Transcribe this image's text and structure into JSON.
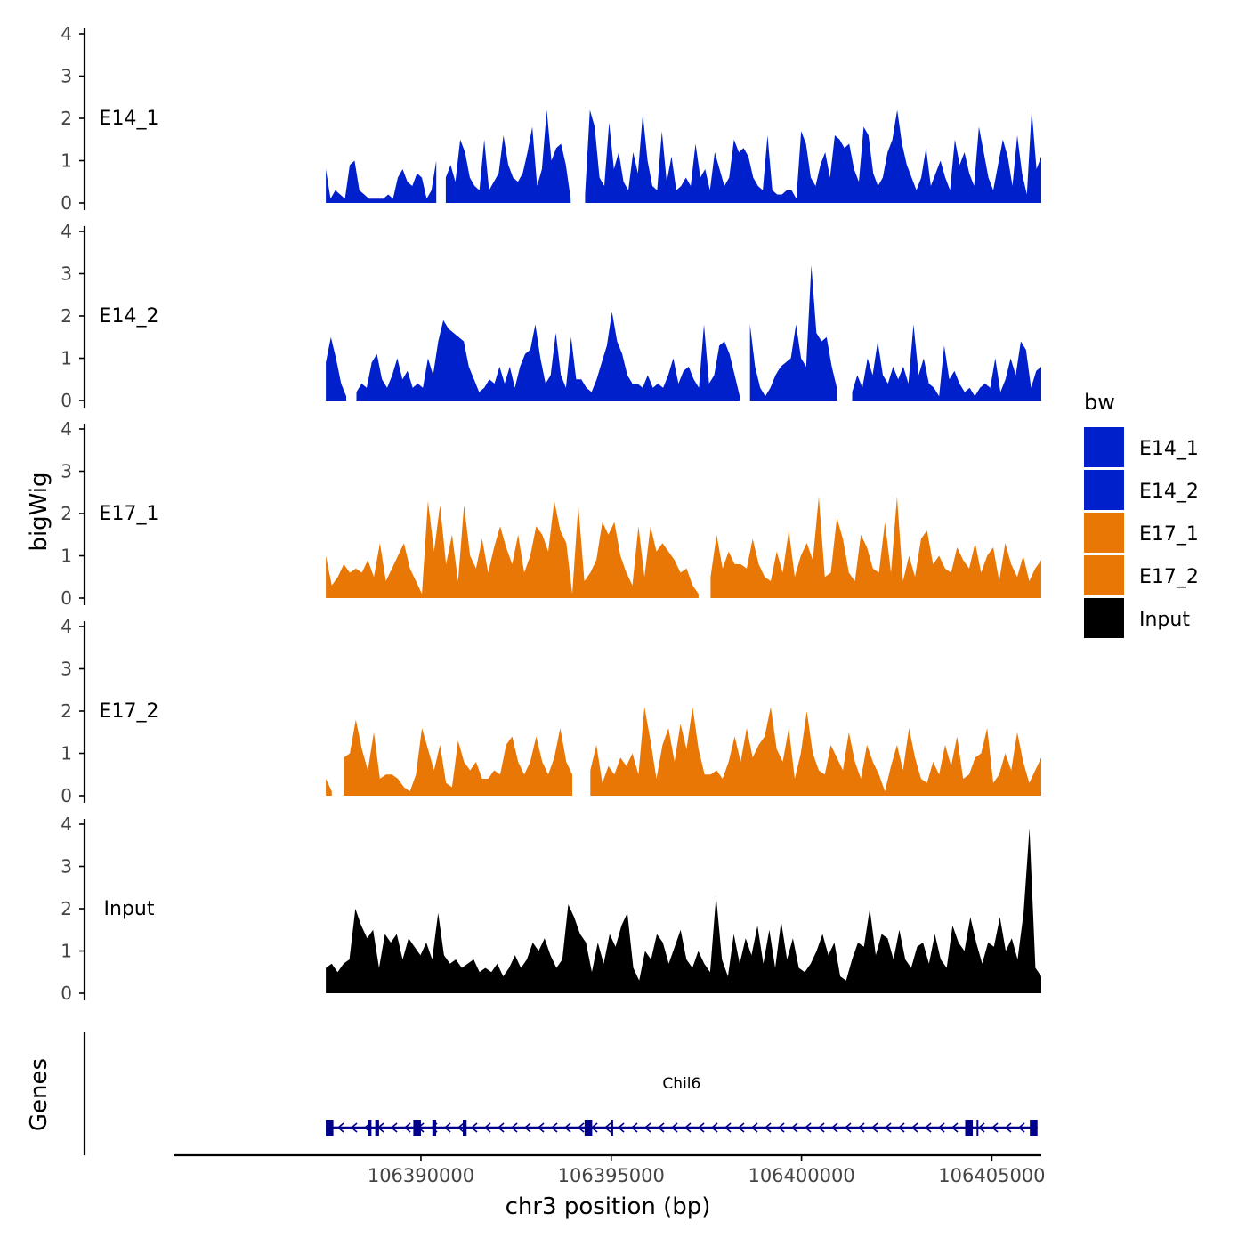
{
  "chart_data": {
    "type": "area",
    "title": "",
    "chromosome": "chr3",
    "xlabel": "chr3 position (bp)",
    "ylabel": "bigWig",
    "genes_label": "Genes",
    "xlim": [
      106383500,
      106406300
    ],
    "x_range": [
      106387500,
      106406300
    ],
    "x_ticks": [
      106390000,
      106395000,
      106400000,
      106405000
    ],
    "x_tick_labels": [
      "106390000",
      "106395000",
      "106400000",
      "106405000"
    ],
    "ylim": [
      0,
      4
    ],
    "y_ticks": [
      0,
      1,
      2,
      3,
      4
    ],
    "y_tick_labels": [
      "0",
      "1",
      "2",
      "3",
      "4"
    ],
    "legend": {
      "title": "bw",
      "position": "right",
      "items": [
        {
          "label": "E14_1",
          "color": "#0020CC"
        },
        {
          "label": "E14_2",
          "color": "#0020CC"
        },
        {
          "label": "E17_1",
          "color": "#E87706"
        },
        {
          "label": "E17_2",
          "color": "#E87706"
        },
        {
          "label": "Input",
          "color": "#000000"
        }
      ]
    },
    "series": [
      {
        "name": "E14_1",
        "color": "#0020CC",
        "values": [
          0.8,
          0.1,
          0.3,
          0.2,
          0.1,
          0.9,
          1.0,
          0.3,
          0.2,
          0.1,
          0.1,
          0.1,
          0.1,
          0.2,
          0.1,
          0.6,
          0.8,
          0.5,
          0.4,
          0.7,
          0.6,
          0.1,
          0.3,
          1.0,
          null,
          0.6,
          0.9,
          0.5,
          1.5,
          1.2,
          0.6,
          0.4,
          0.3,
          1.5,
          0.3,
          0.5,
          0.7,
          1.6,
          0.9,
          0.6,
          0.5,
          0.7,
          1.2,
          1.8,
          0.4,
          0.8,
          2.2,
          1.0,
          1.3,
          1.4,
          0.9,
          0.1,
          null,
          null,
          0.2,
          2.2,
          1.8,
          0.6,
          0.4,
          1.9,
          0.8,
          1.2,
          0.5,
          0.3,
          1.2,
          0.7,
          2.1,
          1.0,
          0.4,
          0.3,
          1.7,
          0.5,
          1.1,
          0.3,
          0.4,
          0.6,
          0.4,
          1.4,
          0.6,
          0.8,
          0.3,
          1.2,
          0.8,
          0.4,
          0.6,
          1.5,
          1.2,
          1.3,
          1.1,
          0.6,
          0.4,
          0.3,
          1.6,
          0.3,
          0.2,
          0.2,
          0.3,
          0.3,
          0.1,
          1.7,
          1.4,
          0.6,
          0.4,
          0.9,
          1.2,
          0.6,
          1.6,
          1.5,
          1.3,
          1.4,
          0.8,
          0.5,
          1.8,
          1.6,
          0.7,
          0.4,
          0.6,
          1.2,
          1.5,
          2.2,
          1.4,
          0.9,
          0.6,
          0.3,
          0.6,
          1.3,
          0.4,
          0.7,
          1.0,
          0.6,
          0.3,
          1.5,
          0.9,
          1.2,
          0.7,
          0.4,
          1.8,
          1.2,
          0.6,
          0.3,
          0.9,
          1.5,
          1.1,
          0.4,
          1.6,
          0.7,
          0.2,
          2.2,
          0.8,
          1.1
        ]
      },
      {
        "name": "E14_2",
        "color": "#0020CC",
        "values": [
          0.9,
          1.5,
          1.0,
          0.4,
          0.1,
          null,
          0.2,
          0.4,
          0.3,
          0.9,
          1.1,
          0.5,
          0.3,
          0.6,
          1.0,
          0.5,
          0.7,
          0.3,
          0.4,
          0.3,
          1.0,
          0.6,
          1.4,
          1.9,
          1.7,
          1.6,
          1.5,
          1.4,
          0.8,
          0.5,
          0.2,
          0.3,
          0.5,
          0.4,
          0.8,
          0.4,
          0.8,
          0.3,
          0.8,
          1.1,
          1.2,
          1.8,
          1.0,
          0.4,
          0.6,
          1.6,
          0.6,
          0.3,
          1.5,
          0.5,
          0.5,
          0.3,
          0.2,
          0.5,
          0.9,
          1.3,
          2.1,
          1.4,
          1.1,
          0.6,
          0.4,
          0.4,
          0.3,
          0.6,
          0.3,
          0.4,
          0.3,
          0.6,
          1.0,
          0.4,
          0.7,
          0.8,
          0.5,
          0.3,
          1.8,
          0.4,
          0.6,
          1.3,
          1.4,
          1.1,
          0.6,
          0.1,
          null,
          1.8,
          0.8,
          0.3,
          0.1,
          0.3,
          0.6,
          0.8,
          0.9,
          1.0,
          1.8,
          1.0,
          0.8,
          3.2,
          1.6,
          1.4,
          1.5,
          0.8,
          0.3,
          null,
          null,
          0.2,
          0.6,
          0.3,
          1.0,
          0.6,
          1.4,
          0.6,
          0.4,
          0.8,
          0.5,
          0.8,
          0.4,
          1.8,
          0.6,
          1.0,
          0.4,
          0.3,
          0.1,
          1.3,
          0.5,
          0.7,
          0.4,
          0.2,
          0.3,
          0.1,
          0.3,
          0.4,
          0.3,
          1.0,
          0.2,
          0.5,
          1.0,
          0.6,
          1.4,
          1.2,
          0.3,
          0.7,
          0.8
        ]
      },
      {
        "name": "E17_1",
        "color": "#E87706",
        "values": [
          1.0,
          0.3,
          0.5,
          0.8,
          0.6,
          0.7,
          0.6,
          0.9,
          0.5,
          1.3,
          0.4,
          0.7,
          1.0,
          1.3,
          0.7,
          0.4,
          0.1,
          2.3,
          1.1,
          2.2,
          0.8,
          1.5,
          0.4,
          2.2,
          1.0,
          0.7,
          1.4,
          0.6,
          1.2,
          1.7,
          1.2,
          0.8,
          1.5,
          0.6,
          1.0,
          1.7,
          1.5,
          1.1,
          2.3,
          1.6,
          1.3,
          0.1,
          2.2,
          0.4,
          0.6,
          0.9,
          1.8,
          1.5,
          1.8,
          1.0,
          0.6,
          0.3,
          1.7,
          0.5,
          1.7,
          1.1,
          1.3,
          1.1,
          0.9,
          0.6,
          0.7,
          0.3,
          0.1,
          null,
          0.5,
          1.5,
          0.7,
          1.1,
          0.8,
          0.8,
          0.7,
          1.4,
          0.8,
          0.5,
          0.4,
          1.1,
          0.6,
          1.6,
          0.5,
          1.0,
          1.3,
          0.9,
          2.4,
          0.5,
          0.6,
          1.9,
          1.4,
          0.6,
          0.4,
          1.5,
          1.2,
          0.7,
          0.6,
          1.8,
          0.6,
          2.4,
          0.4,
          1.0,
          0.5,
          1.4,
          1.6,
          0.8,
          1.0,
          0.7,
          0.6,
          1.2,
          0.9,
          0.7,
          1.3,
          0.6,
          1.0,
          1.2,
          0.4,
          1.3,
          0.8,
          0.5,
          1.0,
          0.4,
          0.7,
          0.9
        ]
      },
      {
        "name": "E17_2",
        "color": "#E87706",
        "values": [
          0.4,
          0.1,
          null,
          0.9,
          1.0,
          1.8,
          1.1,
          0.6,
          1.5,
          0.4,
          0.5,
          0.5,
          0.4,
          0.2,
          0.1,
          0.5,
          1.6,
          1.1,
          0.6,
          1.2,
          0.3,
          0.2,
          1.3,
          0.8,
          0.6,
          0.8,
          0.4,
          0.4,
          0.6,
          0.5,
          1.2,
          1.4,
          0.8,
          0.5,
          0.8,
          1.4,
          0.8,
          0.5,
          0.9,
          1.6,
          0.8,
          0.5,
          null,
          null,
          0.6,
          1.2,
          0.3,
          0.7,
          0.5,
          0.9,
          0.7,
          1.0,
          0.5,
          2.1,
          1.3,
          0.4,
          1.2,
          1.6,
          0.8,
          1.7,
          1.1,
          2.1,
          1.1,
          0.5,
          0.5,
          0.6,
          0.4,
          0.8,
          1.4,
          0.8,
          1.6,
          0.9,
          1.2,
          1.4,
          2.1,
          1.1,
          0.8,
          1.6,
          0.4,
          1.0,
          2.0,
          1.0,
          0.6,
          0.5,
          1.2,
          0.9,
          0.6,
          1.5,
          0.8,
          0.4,
          1.2,
          0.8,
          0.5,
          0.1,
          0.7,
          1.2,
          0.6,
          1.6,
          0.9,
          0.4,
          0.3,
          0.8,
          0.5,
          1.2,
          0.7,
          1.4,
          0.4,
          0.5,
          0.9,
          1.0,
          1.6,
          0.3,
          0.5,
          1.0,
          0.6,
          1.5,
          0.8,
          0.3,
          0.6,
          0.9
        ]
      },
      {
        "name": "Input",
        "color": "#000000",
        "values": [
          0.6,
          0.7,
          0.5,
          0.7,
          0.8,
          2.0,
          1.6,
          1.3,
          1.5,
          0.6,
          1.4,
          1.2,
          1.4,
          0.8,
          1.3,
          1.1,
          0.9,
          1.2,
          0.8,
          1.9,
          0.9,
          0.7,
          0.8,
          0.6,
          0.7,
          0.8,
          0.5,
          0.6,
          0.5,
          0.7,
          0.4,
          0.6,
          0.9,
          0.6,
          0.8,
          1.2,
          1.0,
          1.3,
          0.9,
          0.6,
          0.8,
          2.1,
          1.8,
          1.4,
          1.2,
          0.5,
          1.2,
          0.7,
          1.4,
          1.1,
          1.6,
          1.9,
          0.6,
          0.3,
          1.0,
          0.8,
          1.4,
          1.2,
          0.7,
          1.1,
          1.5,
          0.8,
          0.6,
          1.0,
          0.7,
          0.5,
          2.3,
          0.8,
          0.4,
          1.4,
          0.7,
          1.3,
          0.9,
          1.6,
          0.7,
          1.5,
          0.6,
          1.7,
          0.8,
          1.3,
          0.6,
          0.5,
          0.7,
          1.0,
          1.4,
          0.9,
          1.2,
          0.4,
          0.3,
          0.8,
          1.2,
          1.1,
          2.0,
          0.9,
          1.4,
          1.3,
          0.8,
          1.5,
          0.8,
          0.6,
          1.1,
          1.2,
          0.7,
          1.4,
          0.8,
          0.6,
          1.6,
          1.2,
          1.0,
          1.8,
          1.2,
          0.7,
          1.2,
          1.1,
          1.8,
          1.0,
          1.3,
          0.8,
          1.9,
          3.9,
          0.6,
          0.4
        ]
      }
    ],
    "genes": [
      {
        "name": "Chil6",
        "start": 106387500,
        "end": 106406200,
        "strand": "-",
        "exons": [
          {
            "start": 106387500,
            "end": 106387700
          },
          {
            "start": 106388600,
            "end": 106388700
          },
          {
            "start": 106388800,
            "end": 106388900
          },
          {
            "start": 106389800,
            "end": 106390000
          },
          {
            "start": 106390300,
            "end": 106390400
          },
          {
            "start": 106391100,
            "end": 106391200
          },
          {
            "start": 106394300,
            "end": 106394500
          },
          {
            "start": 106395000,
            "end": 106395050
          },
          {
            "start": 106404300,
            "end": 106404500
          },
          {
            "start": 106404600,
            "end": 106404640
          },
          {
            "start": 106406000,
            "end": 106406200
          }
        ]
      }
    ]
  }
}
